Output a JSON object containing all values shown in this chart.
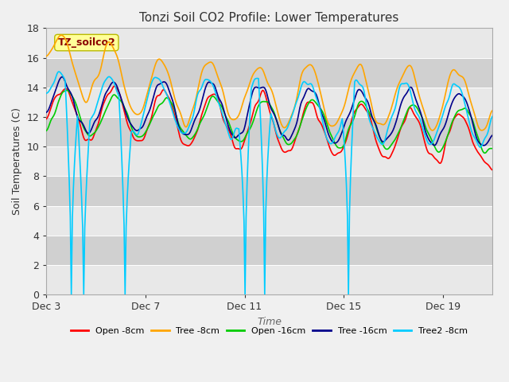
{
  "title": "Tonzi Soil CO2 Profile: Lower Temperatures",
  "xlabel": "Time",
  "ylabel": "Soil Temperatures (C)",
  "ylim": [
    0,
    18
  ],
  "yticks": [
    0,
    2,
    4,
    6,
    8,
    10,
    12,
    14,
    16,
    18
  ],
  "xtick_labels": [
    "Dec 3",
    "Dec 7",
    "Dec 11",
    "Dec 15",
    "Dec 19"
  ],
  "annotation_text": "TZ_soilco2",
  "annotation_color": "#8B0000",
  "annotation_bg": "#FFFF99",
  "legend_entries": [
    "Open -8cm",
    "Tree -8cm",
    "Open -16cm",
    "Tree -16cm",
    "Tree2 -8cm"
  ],
  "line_colors": [
    "#FF0000",
    "#FFA500",
    "#00CC00",
    "#00008B",
    "#00CCFF"
  ],
  "line_widths": [
    1.2,
    1.2,
    1.2,
    1.2,
    1.2
  ],
  "bg_stripe_light": "#E8E8E8",
  "bg_stripe_dark": "#D0D0D0",
  "fig_bg": "#F0F0F0"
}
